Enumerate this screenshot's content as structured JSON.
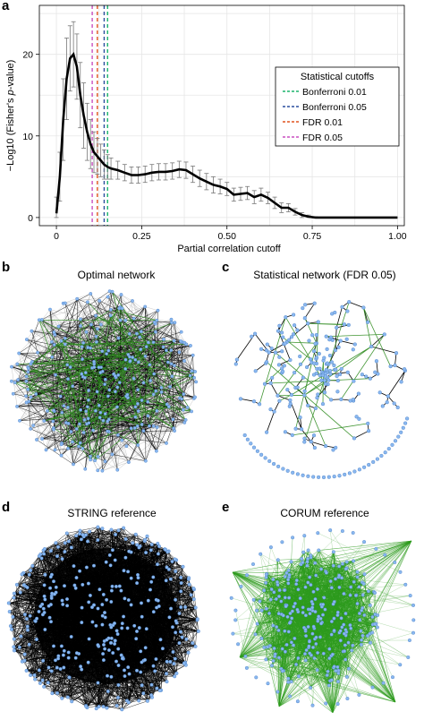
{
  "panels": {
    "a": "a",
    "b": "b",
    "c": "c",
    "d": "d",
    "e": "e"
  },
  "networks": {
    "b": {
      "title": "Optimal network",
      "edge_color": "#000000",
      "accent_edge_color": "#2e8b1e",
      "node_color": "#8ab8f0"
    },
    "c": {
      "title": "Statistical network (FDR 0.05)",
      "edge_color": "#000000",
      "accent_edge_color": "#2e8b1e",
      "node_color": "#8ab8f0"
    },
    "d": {
      "title": "STRING reference",
      "edge_color": "#000000",
      "node_color": "#8ab8f0"
    },
    "e": {
      "title": "CORUM reference",
      "edge_color": "#2e9b1e",
      "node_color": "#8ab8f0"
    }
  },
  "chart_data": {
    "type": "line",
    "title": "",
    "xlabel": "Partial correlation cutoff",
    "ylabel_prefix": "−Log10 (Fisher's ",
    "ylabel_italic": "p",
    "ylabel_suffix": "-value)",
    "xlim": [
      -0.05,
      1.02
    ],
    "ylim": [
      -1,
      26
    ],
    "x_ticks": [
      0,
      0.25,
      0.5,
      0.75,
      1.0
    ],
    "x_tick_labels": [
      "0",
      "0.25",
      "0.50",
      "0.75",
      "1.00"
    ],
    "y_ticks": [
      0,
      10,
      20
    ],
    "y_tick_labels": [
      "0",
      "10",
      "20"
    ],
    "grid": true,
    "legend": {
      "title": "Statistical cutoffs",
      "placement": "top-right",
      "entries": [
        {
          "label": "Bonferroni 0.01",
          "color": "#1bb36b",
          "x": 0.15
        },
        {
          "label": "Bonferroni 0.05",
          "color": "#2a4f9e",
          "x": 0.14
        },
        {
          "label": "FDR 0.01",
          "color": "#e0531e",
          "x": 0.12
        },
        {
          "label": "FDR 0.05",
          "color": "#c94fc0",
          "x": 0.105
        }
      ]
    },
    "series": [
      {
        "color": "#000000",
        "x": [
          0,
          0.01,
          0.02,
          0.03,
          0.04,
          0.05,
          0.06,
          0.07,
          0.08,
          0.09,
          0.1,
          0.11,
          0.12,
          0.13,
          0.14,
          0.15,
          0.16,
          0.18,
          0.2,
          0.22,
          0.24,
          0.26,
          0.28,
          0.3,
          0.32,
          0.34,
          0.36,
          0.38,
          0.4,
          0.42,
          0.44,
          0.46,
          0.48,
          0.5,
          0.52,
          0.54,
          0.56,
          0.58,
          0.6,
          0.62,
          0.64,
          0.66,
          0.68,
          0.7,
          0.72,
          0.74,
          0.76,
          0.8,
          0.9,
          1.0
        ],
        "y": [
          0.5,
          5,
          12,
          17,
          19.5,
          20,
          18.5,
          15,
          12.5,
          10.5,
          9,
          8,
          7.5,
          7,
          6.5,
          6.2,
          6,
          5.8,
          5.5,
          5.2,
          5.2,
          5.3,
          5.5,
          5.6,
          5.6,
          5.7,
          5.9,
          5.8,
          5.3,
          4.8,
          4.4,
          4,
          3.8,
          3.5,
          2.8,
          2.9,
          3,
          2.5,
          2.8,
          2.4,
          1.8,
          1.2,
          1.2,
          0.7,
          0.3,
          0.1,
          0,
          0,
          0,
          0
        ],
        "err": [
          2,
          3,
          5,
          5,
          4,
          4,
          4,
          4,
          4,
          3.5,
          3,
          2.5,
          2.2,
          2,
          1.8,
          1.5,
          1.3,
          1.1,
          1,
          1,
          1,
          1,
          1,
          1,
          1,
          1,
          1,
          1,
          1,
          1,
          1,
          1,
          0.9,
          0.8,
          0.8,
          0.8,
          0.8,
          0.8,
          0.8,
          0.7,
          0.7,
          0.6,
          0.5,
          0.4,
          0.3,
          0.2,
          0.1,
          0,
          0,
          0
        ]
      }
    ]
  }
}
